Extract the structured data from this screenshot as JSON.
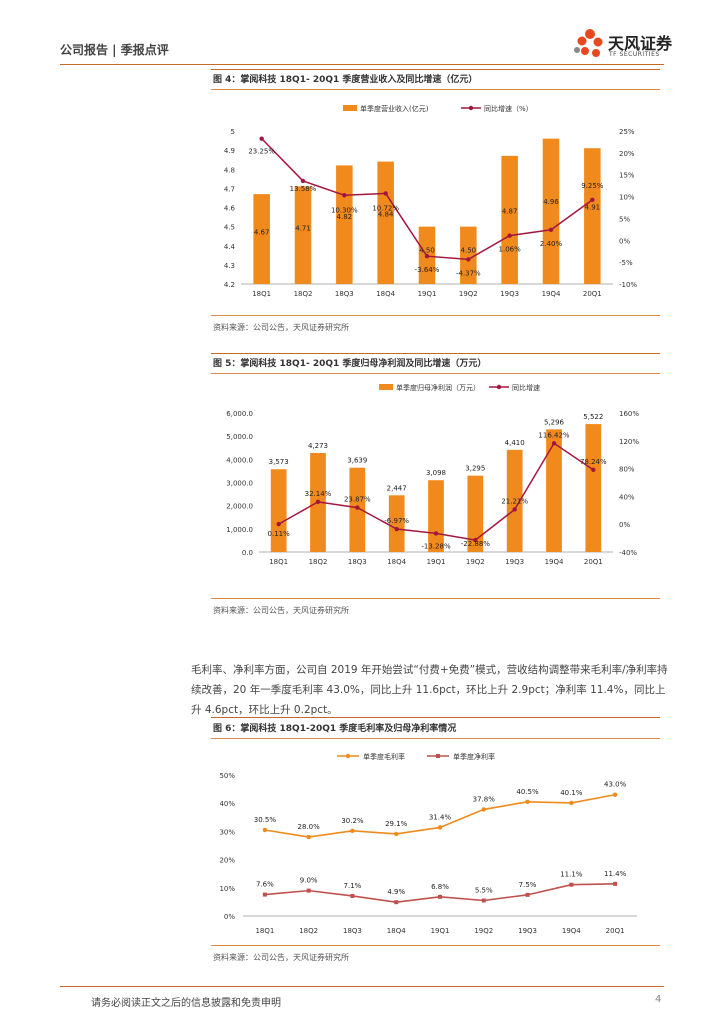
{
  "header": {
    "left": "公司报告 | 季报点评",
    "logo_name": "天风证券",
    "logo_sub": "TF SECURITIES"
  },
  "colors": {
    "orange": "#F08A1D",
    "red": "#A3173E",
    "gray_line": "#C0504D",
    "rule": "#c46a2a"
  },
  "fig4": {
    "caption": "图 4：掌阅科技 18Q1- 20Q1 季度营业收入及同比增速（亿元）",
    "source": "资料来源：公司公告，天风证券研究所"
  },
  "fig5": {
    "caption": "图 5：掌阅科技 18Q1- 20Q1 季度归母净利润及同比增速（万元）",
    "source": "资料来源：公司公告，天风证券研究所"
  },
  "paragraph": "毛利率、净利率方面，公司自 2019 年开始尝试“付费+免费”模式，营收结构调整带来毛利率/净利率持续改善，20 年一季度毛利率 43.0%，同比上升 11.6pct，环比上升 2.9pct；净利率 11.4%，同比上升 4.6pct，环比上升 0.2pct。",
  "fig6": {
    "caption": "图 6：掌阅科技 18Q1-20Q1 季度毛利率及归母净利率情况",
    "source": "资料来源：公司公告，天风证券研究所"
  },
  "chart_data": [
    {
      "type": "bar",
      "categories": [
        "18Q1",
        "18Q2",
        "18Q3",
        "18Q4",
        "19Q1",
        "19Q2",
        "19Q3",
        "19Q4",
        "20Q1"
      ],
      "series": [
        {
          "name": "单季度营业收入(亿元)",
          "kind": "bar",
          "values": [
            4.67,
            4.71,
            4.82,
            4.84,
            4.5,
            4.5,
            4.87,
            4.96,
            4.91
          ],
          "labels": [
            "4.67",
            "4.71",
            "4.82",
            "4.84",
            "4.50",
            "4.50",
            "4.87",
            "4.96",
            "4.91"
          ]
        },
        {
          "name": "同比增速（%）",
          "kind": "line",
          "values": [
            23.25,
            13.58,
            10.3,
            10.72,
            -3.64,
            -4.37,
            1.06,
            2.4,
            9.25
          ],
          "labels": [
            "23.25%",
            "13.58%",
            "10.30%",
            "10.72%",
            "-3.64%",
            "-4.37%",
            "1.06%",
            "2.40%",
            "9.25%"
          ]
        }
      ],
      "ylim": [
        4.2,
        5.0
      ],
      "yticks": [
        "4.2",
        "4.3",
        "4.4",
        "4.5",
        "4.6",
        "4.7",
        "4.8",
        "4.9",
        "5"
      ],
      "y2lim": [
        -10,
        25
      ],
      "y2ticks": [
        "-10%",
        "-5%",
        "0%",
        "5%",
        "10%",
        "15%",
        "20%",
        "25%"
      ]
    },
    {
      "type": "bar",
      "categories": [
        "18Q1",
        "18Q2",
        "18Q3",
        "18Q4",
        "19Q1",
        "19Q2",
        "19Q3",
        "19Q4",
        "20Q1"
      ],
      "series": [
        {
          "name": "单季度归母净利润（万元）",
          "kind": "bar",
          "values": [
            3573,
            4273,
            3639,
            2447,
            3098,
            3295,
            4410,
            5296,
            5522
          ],
          "labels": [
            "3,573",
            "4,273",
            "3,639",
            "2,447",
            "3,098",
            "3,295",
            "4,410",
            "5,296",
            "5,522"
          ]
        },
        {
          "name": "同比增速",
          "kind": "line",
          "values": [
            0.11,
            32.14,
            23.87,
            -6.97,
            -13.28,
            -22.88,
            21.21,
            116.42,
            78.24
          ],
          "labels": [
            "0.11%",
            "32.14%",
            "23.87%",
            "-6.97%",
            "-13.28%",
            "-22.88%",
            "21.21%",
            "116.42%",
            "78.24%"
          ]
        }
      ],
      "ylim": [
        0,
        6000
      ],
      "yticks": [
        "0.0",
        "1,000.0",
        "2,000.0",
        "3,000.0",
        "4,000.0",
        "5,000.0",
        "6,000.0"
      ],
      "y2lim": [
        -40,
        160
      ],
      "y2ticks": [
        "-40%",
        "0%",
        "40%",
        "80%",
        "120%",
        "160%"
      ]
    },
    {
      "type": "line",
      "categories": [
        "18Q1",
        "18Q2",
        "18Q3",
        "18Q4",
        "19Q1",
        "19Q2",
        "19Q3",
        "19Q4",
        "20Q1"
      ],
      "series": [
        {
          "name": "单季度毛利率",
          "kind": "line",
          "values": [
            30.5,
            28.0,
            30.2,
            29.1,
            31.4,
            37.8,
            40.5,
            40.1,
            43.0
          ],
          "labels": [
            "30.5%",
            "28.0%",
            "30.2%",
            "29.1%",
            "31.4%",
            "37.8%",
            "40.5%",
            "40.1%",
            "43.0%"
          ]
        },
        {
          "name": "单季度净利率",
          "kind": "line",
          "values": [
            7.6,
            9.0,
            7.1,
            4.9,
            6.8,
            5.5,
            7.5,
            11.1,
            11.4
          ],
          "labels": [
            "7.6%",
            "9.0%",
            "7.1%",
            "4.9%",
            "6.8%",
            "5.5%",
            "7.5%",
            "11.1%",
            "11.4%"
          ]
        }
      ],
      "ylim": [
        0,
        50
      ],
      "yticks": [
        "0%",
        "10%",
        "20%",
        "30%",
        "40%",
        "50%"
      ]
    }
  ],
  "footer": {
    "disclaimer": "请务必阅读正文之后的信息披露和免责申明",
    "page": "4"
  }
}
